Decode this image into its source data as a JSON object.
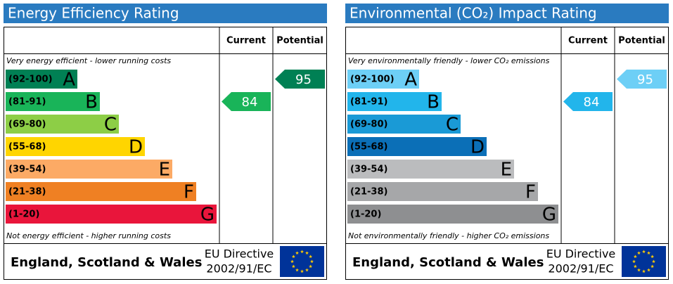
{
  "panels": [
    {
      "title": "Energy Efficiency Rating",
      "columns": [
        "Current",
        "Potential"
      ],
      "top_note": "Very energy efficient - lower running costs",
      "bottom_note": "Not energy efficient - higher running costs",
      "bands": [
        {
          "range": "(92-100)",
          "letter": "A",
          "color": "#008054"
        },
        {
          "range": "(81-91)",
          "letter": "B",
          "color": "#19b459"
        },
        {
          "range": "(69-80)",
          "letter": "C",
          "color": "#8dce46"
        },
        {
          "range": "(55-68)",
          "letter": "D",
          "color": "#ffd500"
        },
        {
          "range": "(39-54)",
          "letter": "E",
          "color": "#fcaa65"
        },
        {
          "range": "(21-38)",
          "letter": "F",
          "color": "#ef8023"
        },
        {
          "range": "(1-20)",
          "letter": "G",
          "color": "#e9153b"
        }
      ],
      "current": 84,
      "potential": 95,
      "footer": {
        "region": "England, Scotland & Wales",
        "directive": "EU Directive",
        "code": "2002/91/EC"
      }
    },
    {
      "title": "Environmental (CO₂) Impact Rating",
      "columns": [
        "Current",
        "Potential"
      ],
      "top_note": "Very environmentally friendly - lower CO₂ emissions",
      "bottom_note": "Not environmentally friendly - higher CO₂ emissions",
      "bands": [
        {
          "range": "(92-100)",
          "letter": "A",
          "color": "#6dcff6"
        },
        {
          "range": "(81-91)",
          "letter": "B",
          "color": "#22b5eb"
        },
        {
          "range": "(69-80)",
          "letter": "C",
          "color": "#1a9ad6"
        },
        {
          "range": "(55-68)",
          "letter": "D",
          "color": "#0b6fb7"
        },
        {
          "range": "(39-54)",
          "letter": "E",
          "color": "#bbbcbe"
        },
        {
          "range": "(21-38)",
          "letter": "F",
          "color": "#a6a7a9"
        },
        {
          "range": "(1-20)",
          "letter": "G",
          "color": "#8e8f91"
        }
      ],
      "current": 84,
      "potential": 95,
      "footer": {
        "region": "England, Scotland & Wales",
        "directive": "EU Directive",
        "code": "2002/91/EC"
      }
    }
  ]
}
